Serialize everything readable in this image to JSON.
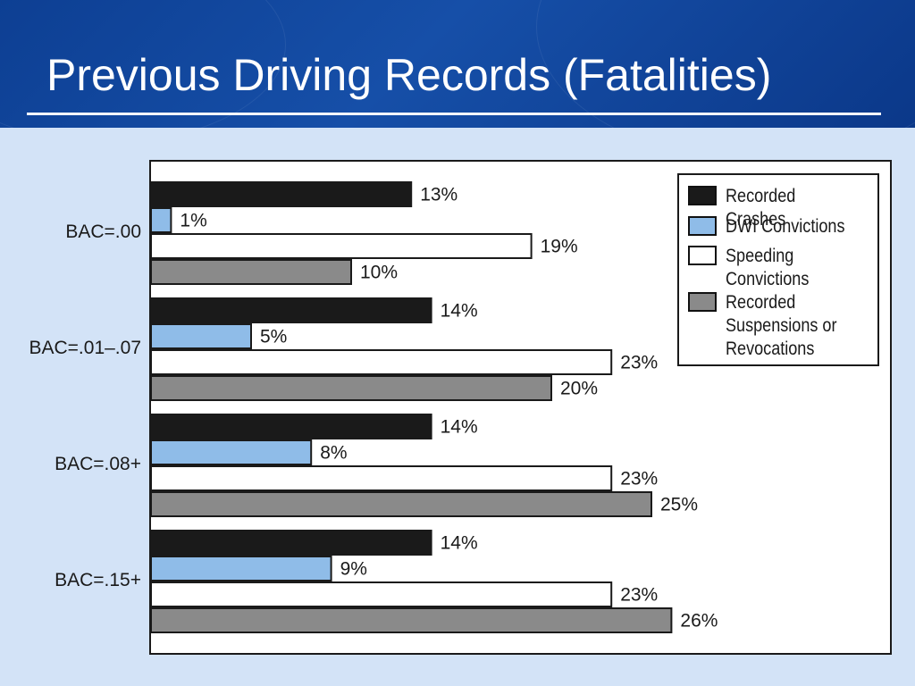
{
  "slide": {
    "title": "Previous Driving Records (Fatalities)"
  },
  "colors": {
    "header_bg": "#0d3f93",
    "slide_bg": "#d3e3f7",
    "recorded_crashes": "#1a1a1a",
    "dwi_convictions": "#8fbce8",
    "speeding_convictions": "#ffffff",
    "suspensions": "#8a8a8a"
  },
  "chart_data": {
    "type": "bar",
    "orientation": "horizontal",
    "categories": [
      "BAC=.00",
      "BAC=.01–.07",
      "BAC=.08+",
      "BAC=.15+"
    ],
    "series": [
      {
        "name": "Recorded Crashes",
        "values": [
          13,
          14,
          14,
          14
        ],
        "labels": [
          "13%",
          "14%",
          "14%",
          "14%"
        ],
        "color": "#1a1a1a"
      },
      {
        "name": "DWI Convictions",
        "values": [
          1,
          5,
          8,
          9
        ],
        "labels": [
          "1%",
          "5%",
          "8%",
          "9%"
        ],
        "color": "#8fbce8"
      },
      {
        "name": "Speeding Convictions",
        "values": [
          19,
          23,
          23,
          23
        ],
        "labels": [
          "19%",
          "23%",
          "23%",
          "23%"
        ],
        "color": "#ffffff"
      },
      {
        "name": "Recorded Suspensions or Revocations",
        "values": [
          10,
          20,
          25,
          26
        ],
        "labels": [
          "10%",
          "20%",
          "25%",
          "26%"
        ],
        "color": "#8a8a8a"
      }
    ],
    "legend": {
      "position": "top-right",
      "entries": [
        "Recorded Crashes",
        "DWI Convictions",
        "Speeding Convictions",
        "Recorded Suspensions or Revocations"
      ]
    },
    "xlim": [
      0,
      37
    ],
    "grid": false
  }
}
